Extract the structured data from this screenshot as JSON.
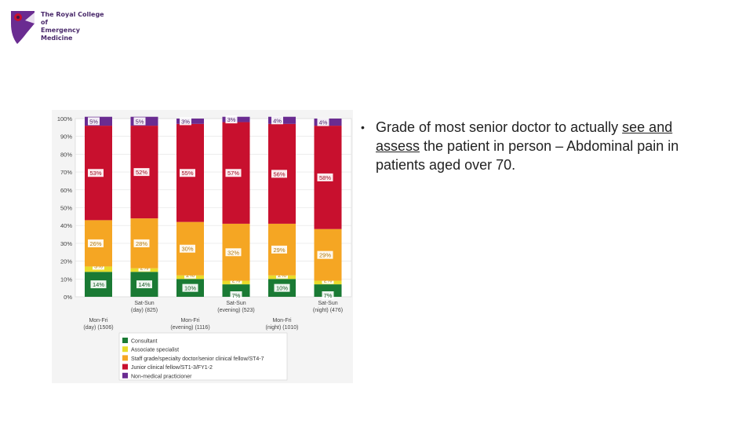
{
  "logo": {
    "line1": "The Royal College of",
    "line2": "Emergency Medicine"
  },
  "bullet": {
    "text_before": "Grade of most senior doctor to actually ",
    "underlined": "see and assess",
    "text_after": " the patient in person – Abdominal pain in patients aged over 70."
  },
  "colors": {
    "consultant": "#1a7a34",
    "associate": "#e8dc2a",
    "staff": "#f5a623",
    "junior": "#c8102e",
    "nonmedical": "#6a2c91"
  },
  "chart_data": {
    "type": "bar",
    "stacked": true,
    "ylim": [
      0,
      100
    ],
    "y_ticks": [
      "0%",
      "10%",
      "20%",
      "30%",
      "40%",
      "50%",
      "60%",
      "70%",
      "80%",
      "90%",
      "100%"
    ],
    "categories": [
      [
        "Mon-Fri",
        "(day) (1506)"
      ],
      [
        "Sat-Sun",
        "(day) (825)"
      ],
      [
        "Mon-Fri",
        "(evening) (1116)"
      ],
      [
        "Sat-Sun",
        "(evening) (523)"
      ],
      [
        "Mon-Fri",
        "(night) (1010)"
      ],
      [
        "Sat-Sun",
        "(night) (476)"
      ]
    ],
    "series": [
      {
        "name": "Consultant",
        "key": "consultant",
        "values": [
          14,
          14,
          10,
          7,
          10,
          7
        ],
        "labels": [
          "14%",
          "14%",
          "10%",
          "7%",
          "10%",
          "7%"
        ]
      },
      {
        "name": "Associate specialist",
        "key": "associate",
        "values": [
          3,
          2,
          2,
          2,
          2,
          2
        ],
        "labels": [
          "3%",
          "2%",
          "2%",
          "2%",
          "2%",
          "2%"
        ]
      },
      {
        "name": "Staff grade/specialty doctor/senior clinical fellow/ST4-7",
        "key": "staff",
        "values": [
          26,
          28,
          30,
          32,
          29,
          29
        ],
        "labels": [
          "26%",
          "28%",
          "30%",
          "32%",
          "29%",
          "29%"
        ]
      },
      {
        "name": "Junior clinical fellow/ST1-3/FY1-2",
        "key": "junior",
        "values": [
          53,
          52,
          55,
          57,
          56,
          58
        ],
        "labels": [
          "53%",
          "52%",
          "55%",
          "57%",
          "56%",
          "58%"
        ]
      },
      {
        "name": "Non-medical practicioner",
        "key": "nonmedical",
        "values": [
          5,
          5,
          3,
          3,
          4,
          4
        ],
        "labels": [
          "5%",
          "5%",
          "3%",
          "3%",
          "4%",
          "4%"
        ]
      }
    ],
    "legend_position": "bottom"
  }
}
